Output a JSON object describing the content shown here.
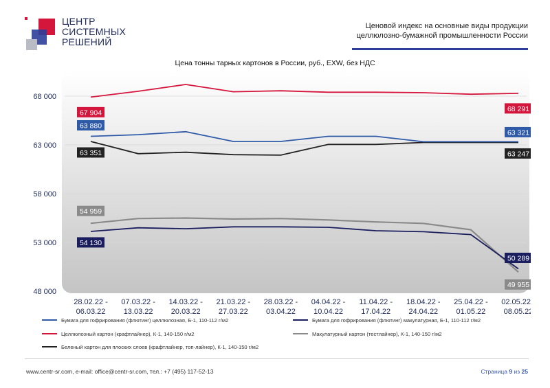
{
  "logo": {
    "lines": [
      "ЦЕНТР",
      "СИСТЕМНЫХ",
      "РЕШЕНИЙ"
    ]
  },
  "header": {
    "title_line1": "Ценовой индекс на основные виды продукции",
    "title_line2": "целлюлозно-бумажной промышленности России"
  },
  "footer": {
    "contacts": "www.centr-sr.com, e-mail: office@centr-sr.com, тел.: +7 (495) 117-52-13",
    "page_word": "Страница",
    "page_num": "9",
    "page_of": "из",
    "page_total": "25"
  },
  "colors": {
    "red": "#d4163c",
    "blue": "#2e5aa8",
    "navy": "#1a1d5e",
    "gray": "#8a8a8a",
    "black": "#222222"
  },
  "chart_data": {
    "type": "line",
    "title": "Цена тонны тарных картонов в России, руб., EXW, без НДС",
    "ylim": [
      48000,
      70000
    ],
    "yticks": [
      48000,
      53000,
      58000,
      63000,
      68000
    ],
    "ytick_labels": [
      "48 000",
      "53 000",
      "58 000",
      "63 000",
      "68 000"
    ],
    "categories": [
      [
        "28.02.22 -",
        "06.03.22"
      ],
      [
        "07.03.22 -",
        "13.03.22"
      ],
      [
        "14.03.22 -",
        "20.03.22"
      ],
      [
        "21.03.22 -",
        "27.03.22"
      ],
      [
        "28.03.22 -",
        "03.04.22"
      ],
      [
        "04.04.22 -",
        "10.04.22"
      ],
      [
        "11.04.22 -",
        "17.04.22"
      ],
      [
        "18.04.22 -",
        "24.04.22"
      ],
      [
        "25.04.22 -",
        "01.05.22"
      ],
      [
        "02.05.22 -",
        "08.05.22"
      ]
    ],
    "series": [
      {
        "name": "Бумага для гофрирования (флютинг) целлюлозная, Б-1, 110-112 г/м2",
        "color": "#2e5aa8",
        "values": [
          63880,
          64050,
          64350,
          63350,
          63350,
          63880,
          63880,
          63321,
          63321,
          63321
        ],
        "start_label": "63 880",
        "end_label": "63 321"
      },
      {
        "name": "Бумага для гофрирования (флютинг) макулатурная, Б-1, 110-112 г/м2",
        "color": "#1a1d5e",
        "values": [
          54130,
          54500,
          54400,
          54600,
          54600,
          54550,
          54200,
          54100,
          53800,
          50289
        ],
        "start_label": "54 130",
        "end_label": "50 289"
      },
      {
        "name": "Целлюлозный картон (крафтлайнер), К-1, 140-150 г/м2",
        "color": "#d4163c",
        "values": [
          67904,
          68500,
          69200,
          68450,
          68550,
          68400,
          68400,
          68350,
          68200,
          68291
        ],
        "start_label": "67 904",
        "end_label": "68 291"
      },
      {
        "name": "Макулатурный картон (тестлайнер), К-1, 140-150 г/м2",
        "color": "#8a8a8a",
        "values": [
          54959,
          55450,
          55500,
          55400,
          55450,
          55300,
          55100,
          54950,
          54300,
          49955
        ],
        "start_label": "54 959",
        "end_label": "49 955"
      },
      {
        "name": "Беленый картон для плоских слоев (крафтлайнер, топ-лайнер), К-1, 140-150 г/м2",
        "color": "#222222",
        "values": [
          63351,
          62100,
          62250,
          62000,
          61950,
          63050,
          63050,
          63247,
          63247,
          63247
        ],
        "start_label": "63 351",
        "end_label": "63 247"
      }
    ]
  }
}
